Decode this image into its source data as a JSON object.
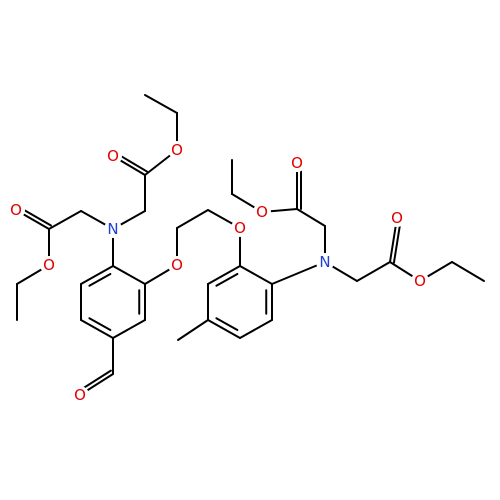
{
  "atoms": [
    {
      "label": "N"
    },
    {
      "label": "N"
    },
    {
      "label": "O"
    },
    {
      "label": "O"
    },
    {
      "label": "O"
    },
    {
      "label": "O"
    },
    {
      "label": "O"
    },
    {
      "label": "O"
    },
    {
      "label": "O"
    },
    {
      "label": "O"
    },
    {
      "label": "O"
    },
    {
      "label": "O"
    },
    {
      "label": "O"
    }
  ]
}
